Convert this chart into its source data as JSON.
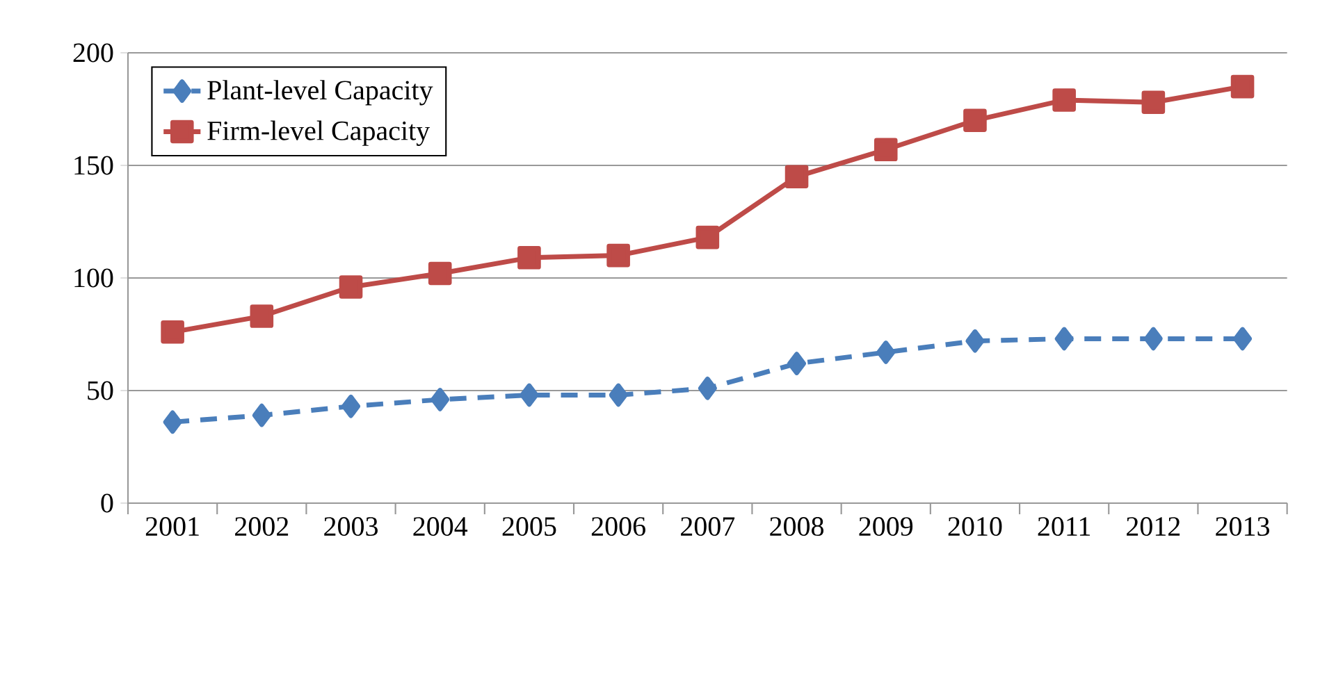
{
  "chart_data": {
    "type": "line",
    "categories": [
      "2001",
      "2002",
      "2003",
      "2004",
      "2005",
      "2006",
      "2007",
      "2008",
      "2009",
      "2010",
      "2011",
      "2012",
      "2013"
    ],
    "series": [
      {
        "name": "Plant-level Capacity",
        "color": "#4a7ebb",
        "marker": "diamond",
        "line_style": "dashed",
        "values": [
          36,
          39,
          43,
          46,
          48,
          48,
          51,
          62,
          67,
          72,
          73,
          73,
          73
        ]
      },
      {
        "name": "Firm-level Capacity",
        "color": "#be4b48",
        "marker": "square",
        "line_style": "solid",
        "values": [
          76,
          83,
          96,
          102,
          109,
          110,
          118,
          145,
          157,
          170,
          179,
          178,
          185
        ]
      }
    ],
    "ylim": [
      0,
      200
    ],
    "yticks": [
      0,
      50,
      100,
      150,
      200
    ],
    "grid": "y",
    "legend": "top left"
  }
}
